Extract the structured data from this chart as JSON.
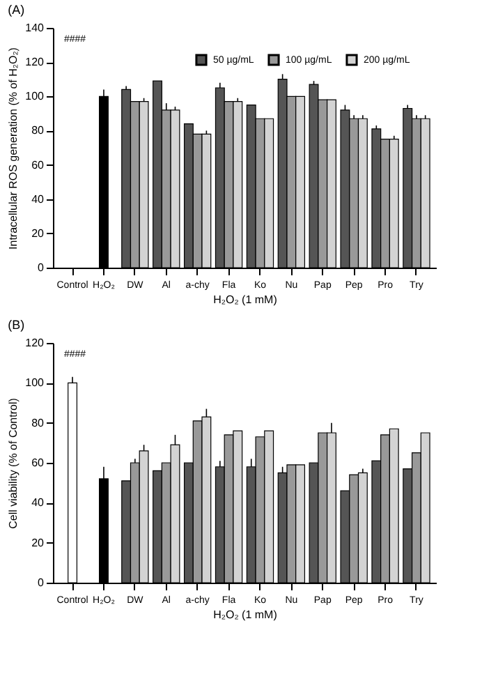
{
  "chart_data": [
    {
      "type": "bar",
      "title": "(A)",
      "xlabel": "H₂O₂ (1 mM)",
      "ylabel": "Intracellular ROS generation (% of H₂O₂)",
      "categories": [
        "Control",
        "H₂O₂",
        "DW",
        "Al",
        "a-chy",
        "Fla",
        "Ko",
        "Nu",
        "Pap",
        "Pep",
        "Pro",
        "Try"
      ],
      "series": [
        {
          "colors": [
            null,
            "#000000",
            null,
            null,
            null,
            null,
            null,
            null,
            null,
            null,
            null,
            null
          ],
          "values": [
            null,
            100,
            null,
            null,
            null,
            null,
            null,
            null,
            null,
            null,
            null,
            null
          ],
          "errors": [
            null,
            4,
            null,
            null,
            null,
            null,
            null,
            null,
            null,
            null,
            null,
            null
          ]
        },
        {
          "name": "50 µg/mL",
          "color": "#555555",
          "values": [
            null,
            null,
            104,
            109,
            84,
            105,
            95,
            110,
            107,
            92,
            81,
            93
          ],
          "errors": [
            null,
            null,
            2,
            null,
            null,
            3,
            null,
            3,
            2,
            3,
            2,
            2
          ]
        },
        {
          "name": "100 µg/mL",
          "color": "#999999",
          "values": [
            null,
            null,
            97,
            92,
            78,
            97,
            87,
            100,
            98,
            87,
            75,
            87
          ],
          "errors": [
            null,
            null,
            null,
            4,
            null,
            null,
            null,
            null,
            null,
            2,
            null,
            2
          ]
        },
        {
          "name": "200 µg/mL",
          "color": "#d3d3d3",
          "values": [
            null,
            null,
            97,
            92,
            78,
            97,
            87,
            100,
            98,
            87,
            75,
            87
          ],
          "errors": [
            null,
            null,
            2,
            2,
            2,
            2,
            null,
            null,
            null,
            2,
            2,
            2
          ]
        }
      ],
      "ylim": [
        0,
        140
      ],
      "yticks": [
        0,
        20,
        40,
        60,
        80,
        100,
        120,
        140
      ],
      "grid": false,
      "legend": "top right",
      "annotations": [
        "####"
      ]
    },
    {
      "type": "bar",
      "title": "(B)",
      "xlabel": "H₂O₂ (1 mM)",
      "ylabel": "Cell viability (% of Control)",
      "categories": [
        "Control",
        "H₂O₂",
        "DW",
        "Al",
        "a-chy",
        "Fla",
        "Ko",
        "Nu",
        "Pap",
        "Pep",
        "Pro",
        "Try"
      ],
      "series": [
        {
          "colors": [
            "#ffffff",
            "#000000",
            null,
            null,
            null,
            null,
            null,
            null,
            null,
            null,
            null,
            null
          ],
          "values": [
            100,
            52,
            null,
            null,
            null,
            null,
            null,
            null,
            null,
            null,
            null,
            null
          ],
          "errors": [
            3,
            6,
            null,
            null,
            null,
            null,
            null,
            null,
            null,
            null,
            null,
            null
          ]
        },
        {
          "color": "#555555",
          "values": [
            null,
            null,
            51,
            56,
            60,
            58,
            58,
            55,
            60,
            46,
            61,
            57
          ],
          "errors": [
            null,
            null,
            null,
            null,
            null,
            3,
            4,
            3,
            null,
            null,
            null,
            null
          ]
        },
        {
          "color": "#999999",
          "values": [
            null,
            null,
            60,
            60,
            81,
            74,
            73,
            59,
            75,
            54,
            74,
            65
          ],
          "errors": [
            null,
            null,
            2,
            null,
            null,
            null,
            null,
            null,
            null,
            null,
            null,
            null
          ]
        },
        {
          "color": "#d3d3d3",
          "values": [
            null,
            null,
            66,
            69,
            83,
            76,
            76,
            59,
            75,
            55,
            77,
            75
          ],
          "errors": [
            null,
            null,
            3,
            5,
            4,
            null,
            null,
            null,
            5,
            2,
            null,
            null
          ]
        }
      ],
      "ylim": [
        0,
        120
      ],
      "yticks": [
        0,
        20,
        40,
        60,
        80,
        100,
        120
      ],
      "grid": false,
      "legend": false,
      "annotations": [
        "####"
      ]
    }
  ]
}
